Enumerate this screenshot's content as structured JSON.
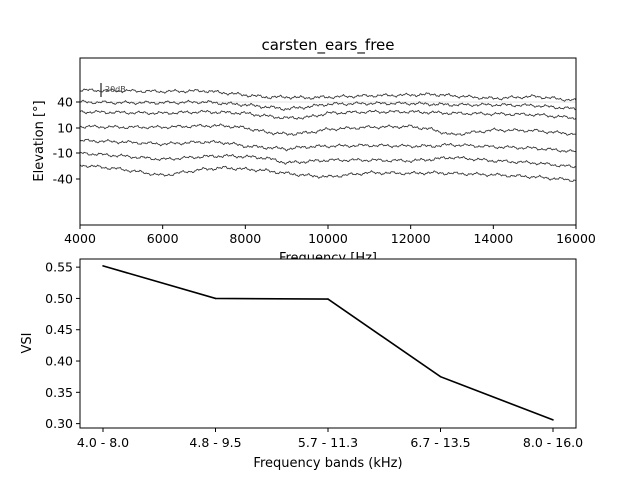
{
  "figure": {
    "background": "#ffffff",
    "line_color": "#000000",
    "trace_color": "#3a3a3a",
    "grid_color": "#e6e6e6"
  },
  "chart_data": [
    {
      "type": "line",
      "title": "carsten_ears_free",
      "xlabel": "Frequency [Hz]",
      "ylabel": "Elevation [°]",
      "xlim": [
        4000,
        16000
      ],
      "xticks": [
        4000,
        6000,
        8000,
        10000,
        12000,
        14000,
        16000
      ],
      "xtick_labels": [
        "4000",
        "6000",
        "8000",
        "10000",
        "12000",
        "14000",
        "16000"
      ],
      "yticks": [
        "40",
        "10",
        "-10",
        "-40"
      ],
      "ytick_values": [
        40,
        10,
        -10,
        -40
      ],
      "scale_bar_label": "20dB",
      "scale_bar_db": 20,
      "grid": "horizontal at 40",
      "series": [
        {
          "elevation": 40,
          "x": [
            4000,
            5000,
            6000,
            7000,
            7500,
            8000,
            8500,
            9000,
            9500,
            10000,
            11000,
            12000,
            12500,
            13000,
            14000,
            15000,
            16000
          ],
          "y": [
            47,
            46,
            45,
            46,
            43,
            40,
            37,
            37,
            36,
            37,
            39,
            40,
            41,
            39,
            35,
            38,
            32
          ]
        },
        {
          "elevation": 25,
          "x": [
            4000,
            5000,
            6000,
            7000,
            7500,
            8000,
            8500,
            9000,
            9500,
            10000,
            11000,
            12000,
            12500,
            13000,
            14000,
            15000,
            16000
          ],
          "y": [
            30,
            29,
            29,
            30,
            28,
            26,
            23,
            20,
            23,
            27,
            28,
            28,
            27,
            26,
            26,
            25,
            20
          ]
        },
        {
          "elevation": 10,
          "x": [
            4000,
            5000,
            6000,
            7000,
            7500,
            8000,
            8500,
            9000,
            9500,
            10000,
            11000,
            12000,
            12500,
            13000,
            14000,
            15000,
            16000
          ],
          "y": [
            16,
            15,
            14,
            16,
            15,
            14,
            10,
            7,
            8,
            14,
            16,
            16,
            15,
            14,
            13,
            12,
            7
          ]
        },
        {
          "elevation": -10,
          "x": [
            4000,
            5000,
            6000,
            7000,
            7500,
            8000,
            8500,
            9000,
            9500,
            10000,
            11000,
            12000,
            12500,
            13000,
            14000,
            15000,
            16000
          ],
          "y": [
            -5,
            -6,
            -6,
            -4,
            -4,
            -7,
            -13,
            -16,
            -14,
            -9,
            -6,
            -5,
            -9,
            -17,
            -10,
            -11,
            -16
          ]
        },
        {
          "elevation": -25,
          "x": [
            4000,
            5000,
            6000,
            7000,
            7500,
            8000,
            8500,
            9000,
            9500,
            10000,
            11000,
            12000,
            12500,
            13000,
            14000,
            15000,
            16000
          ],
          "y": [
            -25,
            -27,
            -30,
            -27,
            -28,
            -33,
            -35,
            -37,
            -34,
            -33,
            -32,
            -33,
            -33,
            -31,
            -34,
            -36,
            -41
          ]
        },
        {
          "elevation": -40,
          "x": [
            4000,
            5000,
            6000,
            7000,
            7500,
            8000,
            8500,
            9000,
            9500,
            10000,
            11000,
            12000,
            12500,
            13000,
            14000,
            15000,
            16000
          ],
          "y": [
            -43,
            -47,
            -52,
            -48,
            -47,
            -48,
            -50,
            -57,
            -55,
            -53,
            -53,
            -54,
            -52,
            -49,
            -54,
            -57,
            -63
          ]
        },
        {
          "elevation": -55,
          "x": [
            4000,
            5000,
            6000,
            7000,
            7500,
            8000,
            8500,
            9000,
            9500,
            10000,
            11000,
            12000,
            12500,
            13000,
            14000,
            15000,
            16000
          ],
          "y": [
            -60,
            -66,
            -75,
            -66,
            -64,
            -66,
            -68,
            -72,
            -75,
            -77,
            -71,
            -72,
            -71,
            -72,
            -74,
            -77,
            -82
          ]
        }
      ]
    },
    {
      "type": "line",
      "title": "",
      "xlabel": "Frequency bands (kHz)",
      "ylabel": "VSI",
      "categories": [
        "4.0 - 8.0",
        "4.8 - 9.5",
        "5.7 - 11.3",
        "6.7 - 13.5",
        "8.0 - 16.0"
      ],
      "values": [
        0.552,
        0.5,
        0.499,
        0.375,
        0.306
      ],
      "ylim": [
        0.293,
        0.563
      ],
      "yticks": [
        0.3,
        0.35,
        0.4,
        0.45,
        0.5,
        0.55
      ],
      "ytick_labels": [
        "0.30",
        "0.35",
        "0.40",
        "0.45",
        "0.50",
        "0.55"
      ],
      "grid": "off"
    }
  ]
}
